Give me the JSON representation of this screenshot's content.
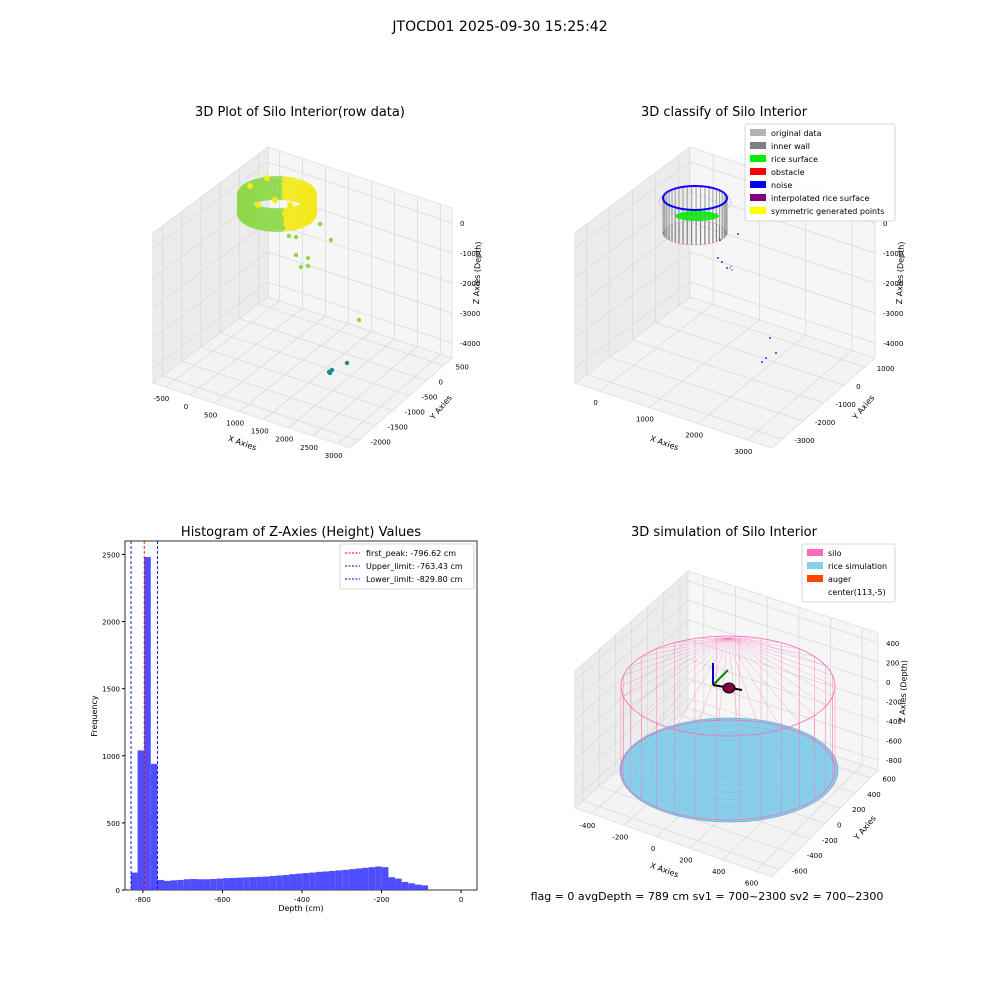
{
  "suptitle": "JTOCD01 2025-09-30 15:25:42",
  "status_text": "flag = 0     avgDepth = 789 cm  sv1 = 700~2300  sv2 = 700~2300",
  "panels": {
    "p1": {
      "title": "3D Plot of Silo Interior(row data)",
      "xlabel": "X Axies",
      "ylabel": "Y Axies",
      "zlabel": "Z Axies (Depth)",
      "x_ticks": [
        "-500",
        "0",
        "500",
        "1000",
        "1500",
        "2000",
        "2500",
        "3000"
      ],
      "y_ticks": [
        "500",
        "0",
        "-500",
        "-1000",
        "-1500",
        "-2000"
      ],
      "z_ticks": [
        "0",
        "-1000",
        "-2000",
        "-3000",
        "-4000"
      ],
      "colors": {
        "cloud_a": "#f2ea1e",
        "cloud_b": "#8ed84a",
        "scatter": "#1f8a8a"
      }
    },
    "p2": {
      "title": "3D classify of Silo Interior",
      "xlabel": "X Axies",
      "ylabel": "Y Axies",
      "zlabel": "Z Axies (Depth)",
      "x_ticks": [
        "0",
        "1000",
        "2000",
        "3000"
      ],
      "y_ticks": [
        "1000",
        "0",
        "-1000",
        "-2000",
        "-3000"
      ],
      "z_ticks": [
        "0",
        "-1000",
        "-2000",
        "-3000",
        "-4000"
      ],
      "legend": [
        {
          "label": "original data",
          "color": "#b3b3b3"
        },
        {
          "label": "inner wall",
          "color": "#808080"
        },
        {
          "label": "rice surface",
          "color": "#00ee00"
        },
        {
          "label": "obstacle",
          "color": "#ff0000"
        },
        {
          "label": "noise",
          "color": "#0000ff"
        },
        {
          "label": "interpolated rice surface",
          "color": "#800080"
        },
        {
          "label": "symmetric generated points",
          "color": "#ffff00"
        }
      ]
    },
    "p3": {
      "title": "Histogram of Z-Axies (Height) Values",
      "xlabel": "Depth (cm)",
      "ylabel": "Frequency",
      "x_ticks": [
        "-800",
        "-600",
        "-400",
        "-200",
        "0"
      ],
      "y_ticks": [
        "0",
        "500",
        "1000",
        "1500",
        "2000",
        "2500"
      ],
      "legend": [
        {
          "label": "first_peak: -796.62 cm",
          "color": "#ff0000"
        },
        {
          "label": "Upper_limit: -763.43 cm",
          "color": "#0000cc"
        },
        {
          "label": "Lower_limit: -829.80 cm",
          "color": "#0000cc"
        }
      ]
    },
    "p4": {
      "title": "3D simulation of Silo Interior",
      "xlabel": "X Axies",
      "ylabel": "Y Axies",
      "zlabel": "Z Axies (Depth)",
      "x_ticks": [
        "-400",
        "-200",
        "0",
        "200",
        "400",
        "600"
      ],
      "y_ticks": [
        "600",
        "400",
        "200",
        "0",
        "-200",
        "-400",
        "-600"
      ],
      "z_ticks": [
        "400",
        "200",
        "0",
        "-200",
        "-400",
        "-600",
        "-800"
      ],
      "legend": [
        {
          "label": "silo",
          "color": "#ff69b4"
        },
        {
          "label": "rice simulation",
          "color": "#87ceeb"
        },
        {
          "label": "auger",
          "color": "#ff4500"
        },
        {
          "label": "center(113,-5)",
          "color": "#ffffff"
        }
      ]
    }
  },
  "chart_data": [
    {
      "type": "scatter",
      "title": "3D Plot of Silo Interior(row data)",
      "xlabel": "X Axies",
      "ylabel": "Y Axies",
      "zlabel": "Z Axies (Depth)",
      "xlim": [
        -600,
        3300
      ],
      "ylim": [
        -2200,
        700
      ],
      "zlim": [
        -4200,
        100
      ],
      "series": [
        {
          "x": [
            -200,
            0,
            200,
            400,
            0,
            200,
            400,
            -100,
            300
          ],
          "y": [
            0,
            300,
            400,
            0,
            -300,
            -400,
            -300,
            200,
            100
          ],
          "z": [
            -800,
            -800,
            -800,
            -800,
            -800,
            -800,
            -800,
            -1000,
            -1200
          ]
        },
        {
          "x": [
            2400,
            2600,
            2650
          ],
          "y": [
            -1500,
            -1700,
            -1750
          ],
          "z": [
            -3000,
            -3700,
            -3900
          ]
        }
      ]
    },
    {
      "type": "scatter",
      "title": "3D classify of Silo Interior",
      "xlabel": "X Axies",
      "ylabel": "Y Axies",
      "zlabel": "Z Axies (Depth)",
      "xlim": [
        -600,
        3300
      ],
      "ylim": [
        -3100,
        1200
      ],
      "zlim": [
        -4200,
        200
      ],
      "series": [
        {
          "name": "inner wall",
          "x": [
            -400,
            0,
            400,
            0
          ],
          "y": [
            0,
            400,
            0,
            -400
          ],
          "z": [
            -600,
            -600,
            -600,
            -600
          ]
        },
        {
          "name": "rice surface",
          "x": [
            -100,
            100,
            200
          ],
          "y": [
            0,
            100,
            -100
          ],
          "z": [
            -800,
            -800,
            -800
          ]
        },
        {
          "name": "noise",
          "x": [
            500,
            2600,
            2700
          ],
          "y": [
            -500,
            -2200,
            -2300
          ],
          "z": [
            -1500,
            -3700,
            -3800
          ]
        }
      ]
    },
    {
      "type": "bar",
      "title": "Histogram of Z-Axies (Height) Values",
      "xlabel": "Depth (cm)",
      "ylabel": "Frequency",
      "xlim": [
        -845,
        40
      ],
      "ylim": [
        0,
        2600
      ],
      "bin_start": -830,
      "bin_width": 16.6,
      "values": [
        130,
        1040,
        2480,
        940,
        75,
        68,
        72,
        75,
        80,
        82,
        80,
        80,
        82,
        85,
        88,
        90,
        92,
        94,
        96,
        98,
        100,
        104,
        108,
        112,
        118,
        122,
        126,
        130,
        135,
        138,
        142,
        146,
        150,
        155,
        160,
        165,
        170,
        175,
        170,
        95,
        85,
        60,
        50,
        40,
        35
      ],
      "vlines": [
        {
          "label": "first_peak: -796.62 cm",
          "x": -796.62,
          "color": "#ff0000"
        },
        {
          "label": "Upper_limit: -763.43 cm",
          "x": -763.43,
          "color": "#0000cc"
        },
        {
          "label": "Lower_limit: -829.80 cm",
          "x": -829.8,
          "color": "#0000cc"
        }
      ]
    },
    {
      "type": "area",
      "title": "3D simulation of Silo Interior",
      "xlabel": "X Axies",
      "ylabel": "Y Axies",
      "zlabel": "Z Axies (Depth)",
      "center": [
        113,
        -5
      ],
      "silo_top_z": 0,
      "rice_surface_z": -789,
      "xlim": [
        -500,
        700
      ],
      "ylim": [
        -700,
        700
      ],
      "zlim": [
        -900,
        450
      ]
    }
  ]
}
